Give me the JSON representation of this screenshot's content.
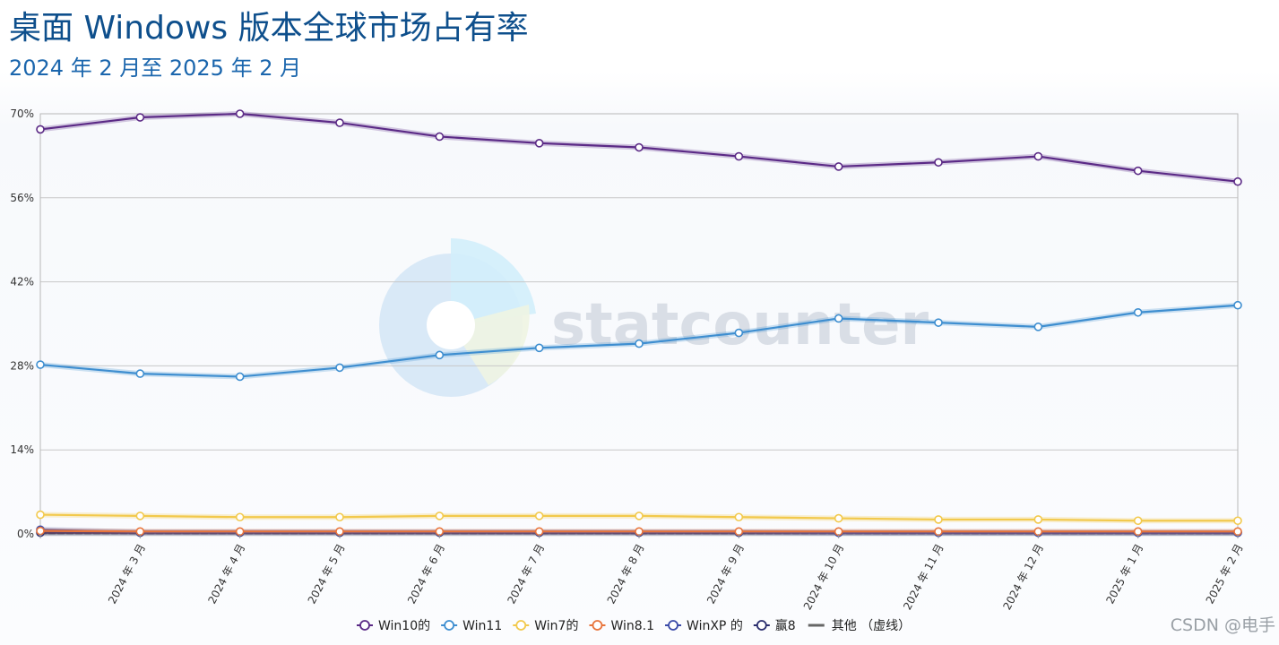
{
  "title": "桌面 Windows 版本全球市场占有率",
  "subtitle": "2024 年 2 月至 2025 年 2 月",
  "watermark": "statcounter",
  "credit": "CSDN @电手",
  "chart_data": {
    "type": "line",
    "title": "桌面 Windows 版本全球市场占有率",
    "subtitle": "2024 年 2 月至 2025 年 2 月",
    "categories": [
      "",
      "2024 年 3 月",
      "2024 年 4 月",
      "2024 年 5 月",
      "2024 年 6 月",
      "2024 年 7 月",
      "2024 年 8 月",
      "2024 年 9 月",
      "2024 年 10 月",
      "2024 年 11 月",
      "2024 年 12 月",
      "2025 年 1 月",
      "2025 年 2 月"
    ],
    "yticks": [
      "0%",
      "14%",
      "28%",
      "42%",
      "56%",
      "70%"
    ],
    "ylim": [
      0,
      70
    ],
    "grid": true,
    "legend_position": "bottom",
    "series": [
      {
        "name": "Win10的",
        "color": "#5b2a86",
        "values": [
          67.4,
          69.4,
          70.0,
          68.5,
          66.2,
          65.1,
          64.4,
          62.9,
          61.2,
          61.9,
          62.9,
          60.5,
          58.7
        ]
      },
      {
        "name": "Win11",
        "color": "#3e8ed0",
        "values": [
          28.2,
          26.7,
          26.2,
          27.7,
          29.8,
          31.0,
          31.7,
          33.5,
          35.9,
          35.2,
          34.5,
          36.9,
          38.1
        ]
      },
      {
        "name": "Win7的",
        "color": "#f2c94c",
        "values": [
          3.2,
          3.0,
          2.8,
          2.8,
          3.0,
          3.0,
          3.0,
          2.8,
          2.6,
          2.4,
          2.4,
          2.2,
          2.2
        ]
      },
      {
        "name": "Win8.1",
        "color": "#e8743b",
        "values": [
          0.5,
          0.4,
          0.4,
          0.4,
          0.4,
          0.4,
          0.4,
          0.4,
          0.4,
          0.4,
          0.4,
          0.4,
          0.4
        ]
      },
      {
        "name": "WinXP 的",
        "color": "#3a4aa8",
        "values": [
          0.7,
          0.3,
          0.3,
          0.3,
          0.3,
          0.3,
          0.3,
          0.3,
          0.2,
          0.2,
          0.2,
          0.2,
          0.2
        ]
      },
      {
        "name": "赢8",
        "color": "#2b2e6e",
        "values": [
          0.2,
          0.2,
          0.2,
          0.2,
          0.2,
          0.2,
          0.2,
          0.2,
          0.2,
          0.2,
          0.2,
          0.2,
          0.2
        ]
      },
      {
        "name": "其他 （虚线）",
        "color": "#666666",
        "dashed": true,
        "values": [
          0.1,
          0.1,
          0.1,
          0.1,
          0.1,
          0.1,
          0.1,
          0.1,
          0.1,
          0.1,
          0.1,
          0.1,
          0.1
        ]
      }
    ]
  }
}
